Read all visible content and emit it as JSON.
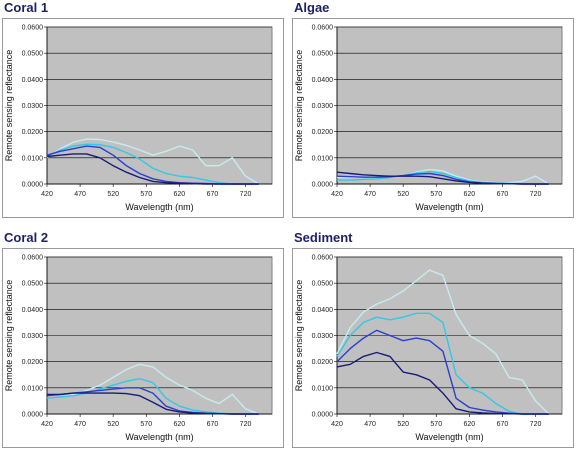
{
  "chart_data": [
    {
      "type": "line",
      "title": "Coral 1",
      "xlabel": "Wavelength (nm)",
      "ylabel": "Remote sensing reflectance",
      "x_ticks": [
        "420",
        "470",
        "520",
        "570",
        "620",
        "670",
        "720"
      ],
      "y_ticks": [
        "0.0000",
        "0.0100",
        "0.0200",
        "0.0300",
        "0.0400",
        "0.0500",
        "0.0600"
      ],
      "xlim": [
        420,
        760
      ],
      "ylim": [
        0,
        0.06
      ],
      "grid": true,
      "x": [
        420,
        440,
        460,
        480,
        500,
        520,
        540,
        560,
        580,
        600,
        620,
        640,
        660,
        680,
        700,
        720,
        740
      ],
      "series": [
        {
          "color": "#c6ecee",
          "values": [
            0.01,
            0.0135,
            0.016,
            0.0172,
            0.017,
            0.016,
            0.0148,
            0.013,
            0.011,
            0.0125,
            0.0145,
            0.013,
            0.007,
            0.007,
            0.01,
            0.003,
            0.0
          ]
        },
        {
          "color": "#33c7e6",
          "values": [
            0.0105,
            0.013,
            0.0145,
            0.0152,
            0.015,
            0.014,
            0.012,
            0.0095,
            0.006,
            0.004,
            0.003,
            0.0025,
            0.0015,
            0.0005,
            0.0,
            0.0,
            0.0
          ]
        },
        {
          "color": "#2a3fcf",
          "values": [
            0.011,
            0.0125,
            0.0135,
            0.0145,
            0.014,
            0.011,
            0.007,
            0.004,
            0.002,
            0.001,
            0.0005,
            0.0003,
            0.0002,
            0.0,
            0.0,
            0.0,
            0.0
          ]
        },
        {
          "color": "#1a1a7a",
          "values": [
            0.0105,
            0.011,
            0.0115,
            0.0115,
            0.01,
            0.007,
            0.0045,
            0.0025,
            0.001,
            0.0005,
            0.0003,
            0.0001,
            0.0,
            0.0,
            0.0,
            0.0,
            0.0
          ]
        }
      ]
    },
    {
      "type": "line",
      "title": "Algae",
      "xlabel": "Wavelength (nm)",
      "ylabel": "Remote sensing reflectance",
      "x_ticks": [
        "420",
        "470",
        "520",
        "570",
        "620",
        "670",
        "720"
      ],
      "y_ticks": [
        "0.0000",
        "0.0100",
        "0.0200",
        "0.0300",
        "0.0400",
        "0.0500",
        "0.0600"
      ],
      "xlim": [
        420,
        760
      ],
      "ylim": [
        0,
        0.06
      ],
      "grid": true,
      "x": [
        420,
        440,
        460,
        480,
        500,
        520,
        540,
        560,
        580,
        600,
        620,
        640,
        660,
        680,
        700,
        720,
        740
      ],
      "series": [
        {
          "color": "#c6ecee",
          "values": [
            0.0025,
            0.0025,
            0.0025,
            0.0025,
            0.0025,
            0.003,
            0.0045,
            0.0055,
            0.005,
            0.003,
            0.0015,
            0.0008,
            0.0005,
            0.0005,
            0.001,
            0.003,
            0.0
          ]
        },
        {
          "color": "#33c7e6",
          "values": [
            0.0015,
            0.0015,
            0.0018,
            0.002,
            0.0025,
            0.0032,
            0.0042,
            0.0048,
            0.004,
            0.0025,
            0.0012,
            0.0006,
            0.0003,
            0.0002,
            0.0002,
            0.0,
            0.0
          ]
        },
        {
          "color": "#2a3fcf",
          "values": [
            0.003,
            0.0028,
            0.0026,
            0.0026,
            0.0028,
            0.0032,
            0.0038,
            0.004,
            0.0032,
            0.0018,
            0.0008,
            0.0004,
            0.0002,
            0.0001,
            0.0,
            0.0,
            0.0
          ]
        },
        {
          "color": "#1a1a7a",
          "values": [
            0.0045,
            0.004,
            0.0035,
            0.0032,
            0.003,
            0.003,
            0.003,
            0.0028,
            0.002,
            0.0012,
            0.0006,
            0.0003,
            0.0002,
            0.0001,
            0.0,
            0.0,
            0.0
          ]
        }
      ]
    },
    {
      "type": "line",
      "title": "Coral 2",
      "xlabel": "Wavelength (nm)",
      "ylabel": "Remote sensing reflectance",
      "x_ticks": [
        "420",
        "470",
        "520",
        "570",
        "620",
        "670",
        "720"
      ],
      "y_ticks": [
        "0.0000",
        "0.0100",
        "0.0200",
        "0.0300",
        "0.0400",
        "0.0500",
        "0.0600"
      ],
      "xlim": [
        420,
        760
      ],
      "ylim": [
        0,
        0.06
      ],
      "grid": true,
      "x": [
        420,
        440,
        460,
        480,
        500,
        520,
        540,
        560,
        580,
        600,
        620,
        640,
        660,
        680,
        700,
        720,
        740
      ],
      "series": [
        {
          "color": "#c6ecee",
          "values": [
            0.006,
            0.0065,
            0.0075,
            0.009,
            0.011,
            0.014,
            0.017,
            0.019,
            0.018,
            0.014,
            0.011,
            0.009,
            0.006,
            0.004,
            0.0075,
            0.002,
            0.0
          ]
        },
        {
          "color": "#33c7e6",
          "values": [
            0.006,
            0.0065,
            0.007,
            0.008,
            0.0095,
            0.011,
            0.0125,
            0.0135,
            0.012,
            0.006,
            0.003,
            0.0015,
            0.0008,
            0.0003,
            0.0,
            0.0,
            0.0
          ]
        },
        {
          "color": "#2a3fcf",
          "values": [
            0.007,
            0.0075,
            0.008,
            0.0085,
            0.009,
            0.0095,
            0.01,
            0.01,
            0.008,
            0.003,
            0.0012,
            0.0006,
            0.0003,
            0.0001,
            0.0,
            0.0,
            0.0
          ]
        },
        {
          "color": "#1a1a7a",
          "values": [
            0.0075,
            0.0075,
            0.008,
            0.008,
            0.008,
            0.008,
            0.0078,
            0.007,
            0.0045,
            0.0018,
            0.0008,
            0.0004,
            0.0002,
            0.0001,
            0.0,
            0.0,
            0.0
          ]
        }
      ]
    },
    {
      "type": "line",
      "title": "Sediment",
      "xlabel": "Wavelength (nm)",
      "ylabel": "Remote sensing reflectance",
      "x_ticks": [
        "420",
        "470",
        "520",
        "570",
        "620",
        "670",
        "720"
      ],
      "y_ticks": [
        "0.0000",
        "0.0100",
        "0.0200",
        "0.0300",
        "0.0400",
        "0.0500",
        "0.0600"
      ],
      "xlim": [
        420,
        760
      ],
      "ylim": [
        0,
        0.06
      ],
      "grid": true,
      "x": [
        420,
        440,
        460,
        480,
        500,
        520,
        540,
        560,
        580,
        600,
        620,
        640,
        660,
        680,
        700,
        720,
        740
      ],
      "series": [
        {
          "color": "#c6ecee",
          "values": [
            0.023,
            0.033,
            0.039,
            0.042,
            0.044,
            0.047,
            0.051,
            0.055,
            0.053,
            0.038,
            0.03,
            0.027,
            0.023,
            0.014,
            0.013,
            0.005,
            0.0
          ]
        },
        {
          "color": "#33c7e6",
          "values": [
            0.022,
            0.03,
            0.035,
            0.037,
            0.036,
            0.037,
            0.0385,
            0.0385,
            0.035,
            0.015,
            0.01,
            0.008,
            0.004,
            0.001,
            0.0,
            0.0,
            0.0
          ]
        },
        {
          "color": "#2a3fcf",
          "values": [
            0.02,
            0.025,
            0.029,
            0.032,
            0.03,
            0.028,
            0.029,
            0.028,
            0.024,
            0.006,
            0.0025,
            0.0015,
            0.0008,
            0.0003,
            0.0,
            0.0,
            0.0
          ]
        },
        {
          "color": "#1a1a7a",
          "values": [
            0.018,
            0.019,
            0.022,
            0.0235,
            0.022,
            0.016,
            0.015,
            0.013,
            0.008,
            0.002,
            0.0008,
            0.0004,
            0.0002,
            0.0001,
            0.0,
            0.0,
            0.0
          ]
        }
      ]
    }
  ]
}
